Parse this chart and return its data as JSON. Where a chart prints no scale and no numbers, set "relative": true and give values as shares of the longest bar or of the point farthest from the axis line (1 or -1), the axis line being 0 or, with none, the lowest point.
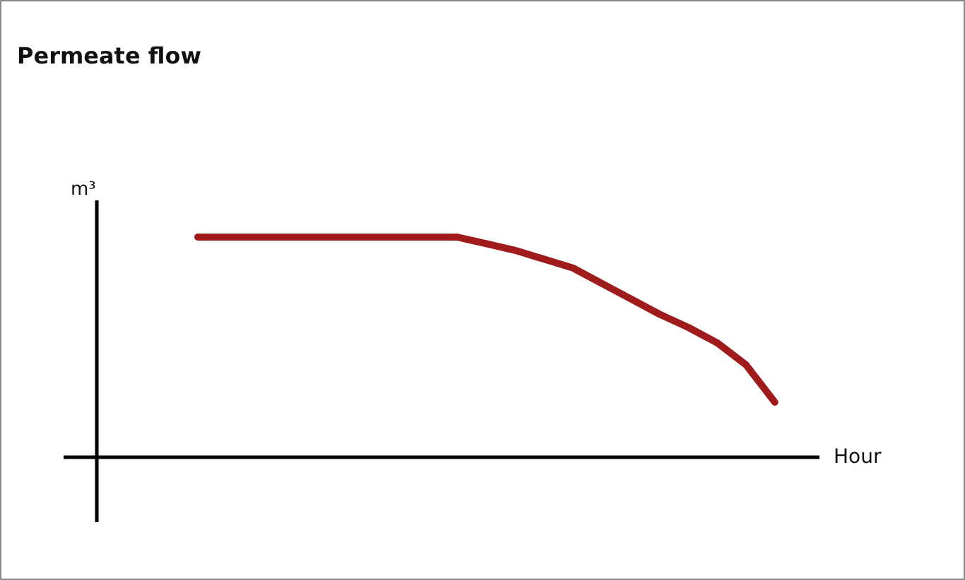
{
  "chart_data": {
    "type": "line",
    "title": "Permeate flow",
    "xlabel": "Hour",
    "annotations": [
      "m³"
    ],
    "relative": true,
    "marker": "none",
    "color": "#a01c1c",
    "categories": [
      null,
      null,
      null,
      null,
      null,
      null,
      null,
      null,
      null,
      null,
      null,
      null,
      null,
      null,
      null,
      null,
      null,
      null,
      null,
      null,
      null
    ],
    "values": [
      1,
      1,
      1,
      1,
      1,
      1,
      1,
      1,
      1,
      1,
      0.97,
      0.94,
      0.9,
      0.86,
      0.79,
      0.72,
      0.65,
      0.59,
      0.52,
      0.42,
      0.25
    ]
  }
}
